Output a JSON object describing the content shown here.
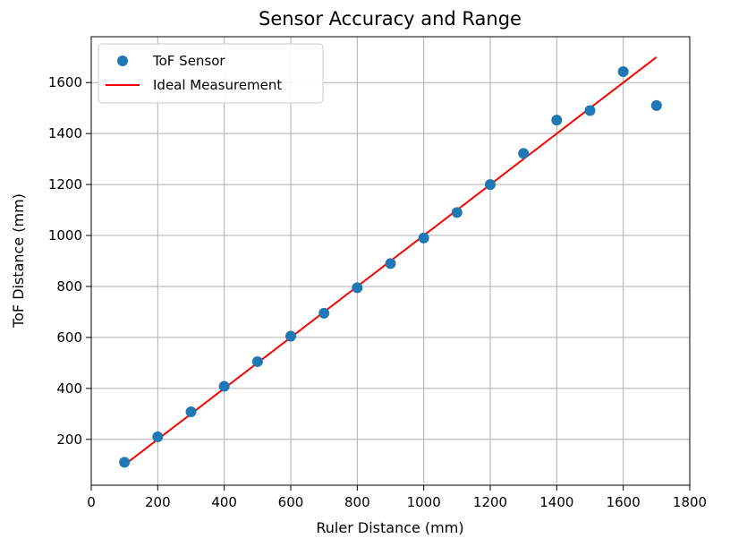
{
  "chart_data": {
    "type": "scatter",
    "title": "Sensor Accuracy and Range",
    "xlabel": "Ruler Distance (mm)",
    "ylabel": "ToF Distance (mm)",
    "xlim": [
      0,
      1800
    ],
    "ylim": [
      20,
      1780
    ],
    "xticks": [
      0,
      200,
      400,
      600,
      800,
      1000,
      1200,
      1400,
      1600,
      1800
    ],
    "yticks": [
      200,
      400,
      600,
      800,
      1000,
      1200,
      1400,
      1600
    ],
    "grid": true,
    "legend_position": "top-left",
    "series": [
      {
        "name": "ToF Sensor",
        "kind": "scatter",
        "color": "#1f77b4",
        "points": [
          [
            100,
            110
          ],
          [
            200,
            210
          ],
          [
            300,
            308
          ],
          [
            400,
            408
          ],
          [
            500,
            505
          ],
          [
            600,
            605
          ],
          [
            700,
            695
          ],
          [
            800,
            795
          ],
          [
            900,
            890
          ],
          [
            1000,
            990
          ],
          [
            1100,
            1090
          ],
          [
            1200,
            1200
          ],
          [
            1300,
            1322
          ],
          [
            1400,
            1453
          ],
          [
            1500,
            1490
          ],
          [
            1600,
            1643
          ],
          [
            1700,
            1510
          ]
        ]
      },
      {
        "name": "Ideal Measurement",
        "kind": "line",
        "color": "#ff0000",
        "points": [
          [
            100,
            100
          ],
          [
            1700,
            1700
          ]
        ]
      }
    ]
  }
}
